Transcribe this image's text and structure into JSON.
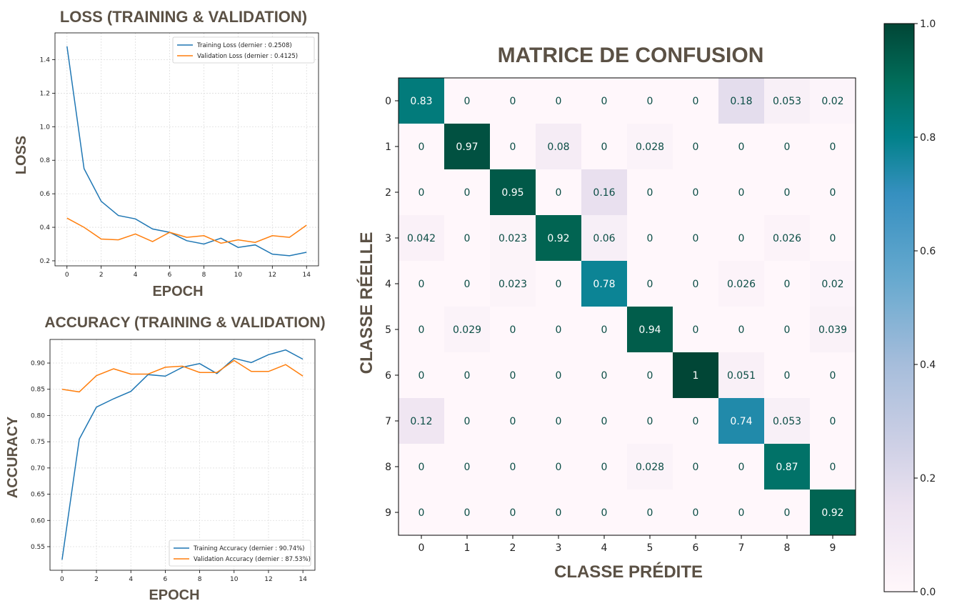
{
  "chart_data": [
    {
      "type": "line",
      "title": "LOSS (TRAINING & VALIDATION)",
      "xlabel": "EPOCH",
      "ylabel": "LOSS",
      "x": [
        0,
        1,
        2,
        3,
        4,
        5,
        6,
        7,
        8,
        9,
        10,
        11,
        12,
        13,
        14
      ],
      "xticks": [
        0,
        2,
        4,
        6,
        8,
        10,
        12,
        14
      ],
      "yticks": [
        0.2,
        0.4,
        0.6,
        0.8,
        1.0,
        1.2,
        1.4
      ],
      "xlim": [
        -0.7,
        14.7
      ],
      "ylim": [
        0.17,
        1.56
      ],
      "grid": true,
      "legend_position": "top-right",
      "series": [
        {
          "name": "Training Loss (dernier : 0.2508)",
          "color": "#1f77b4",
          "values": [
            1.48,
            0.75,
            0.555,
            0.47,
            0.45,
            0.39,
            0.37,
            0.32,
            0.3,
            0.335,
            0.28,
            0.295,
            0.24,
            0.23,
            0.2508
          ]
        },
        {
          "name": "Validation Loss (dernier : 0.4125)",
          "color": "#ff7f0e",
          "values": [
            0.455,
            0.4,
            0.33,
            0.325,
            0.36,
            0.315,
            0.37,
            0.34,
            0.35,
            0.305,
            0.325,
            0.31,
            0.35,
            0.34,
            0.4125
          ]
        }
      ]
    },
    {
      "type": "line",
      "title": "ACCURACY (TRAINING & VALIDATION)",
      "xlabel": "EPOCH",
      "ylabel": "ACCURACY",
      "x": [
        0,
        1,
        2,
        3,
        4,
        5,
        6,
        7,
        8,
        9,
        10,
        11,
        12,
        13,
        14
      ],
      "xticks": [
        0,
        2,
        4,
        6,
        8,
        10,
        12,
        14
      ],
      "yticks": [
        0.55,
        0.6,
        0.65,
        0.7,
        0.75,
        0.8,
        0.85,
        0.9
      ],
      "xlim": [
        -0.7,
        14.7
      ],
      "ylim": [
        0.505,
        0.945
      ],
      "grid": true,
      "legend_position": "bottom-right",
      "series": [
        {
          "name": "Training Accuracy (dernier : 90.74%)",
          "color": "#1f77b4",
          "values": [
            0.525,
            0.755,
            0.816,
            0.832,
            0.846,
            0.878,
            0.875,
            0.892,
            0.899,
            0.88,
            0.909,
            0.901,
            0.916,
            0.925,
            0.9074
          ]
        },
        {
          "name": "Validation Accuracy (dernier : 87.53%)",
          "color": "#ff7f0e",
          "values": [
            0.85,
            0.845,
            0.876,
            0.889,
            0.879,
            0.879,
            0.892,
            0.894,
            0.882,
            0.882,
            0.905,
            0.884,
            0.884,
            0.897,
            0.8753
          ]
        }
      ]
    },
    {
      "type": "heatmap",
      "title": "MATRICE DE CONFUSION",
      "xlabel": "CLASSE PRÉDITE",
      "ylabel": "CLASSE RÉELLE",
      "x_categories": [
        "0",
        "1",
        "2",
        "3",
        "4",
        "5",
        "6",
        "7",
        "8",
        "9"
      ],
      "y_categories": [
        "0",
        "1",
        "2",
        "3",
        "4",
        "5",
        "6",
        "7",
        "8",
        "9"
      ],
      "colorbar_ticks": [
        "0.0",
        "0.2",
        "0.4",
        "0.6",
        "0.8",
        "1.0"
      ],
      "vmin": 0,
      "vmax": 1,
      "colormap": "PuBuGn",
      "values": [
        [
          0.83,
          0,
          0,
          0,
          0,
          0,
          0,
          0.18,
          0.053,
          0.02
        ],
        [
          0,
          0.97,
          0,
          0.08,
          0,
          0.028,
          0,
          0,
          0,
          0
        ],
        [
          0,
          0,
          0.95,
          0,
          0.16,
          0,
          0,
          0,
          0,
          0
        ],
        [
          0.042,
          0,
          0.023,
          0.92,
          0.06,
          0,
          0,
          0,
          0.026,
          0
        ],
        [
          0,
          0,
          0.023,
          0,
          0.78,
          0,
          0,
          0.026,
          0,
          0.02
        ],
        [
          0,
          0.029,
          0,
          0,
          0,
          0.94,
          0,
          0,
          0,
          0.039
        ],
        [
          0,
          0,
          0,
          0,
          0,
          0,
          1,
          0.051,
          0,
          0
        ],
        [
          0.12,
          0,
          0,
          0,
          0,
          0,
          0,
          0.74,
          0.053,
          0
        ],
        [
          0,
          0,
          0,
          0,
          0,
          0.028,
          0,
          0,
          0.87,
          0
        ],
        [
          0,
          0,
          0,
          0,
          0,
          0,
          0,
          0,
          0,
          0.92
        ]
      ]
    }
  ]
}
